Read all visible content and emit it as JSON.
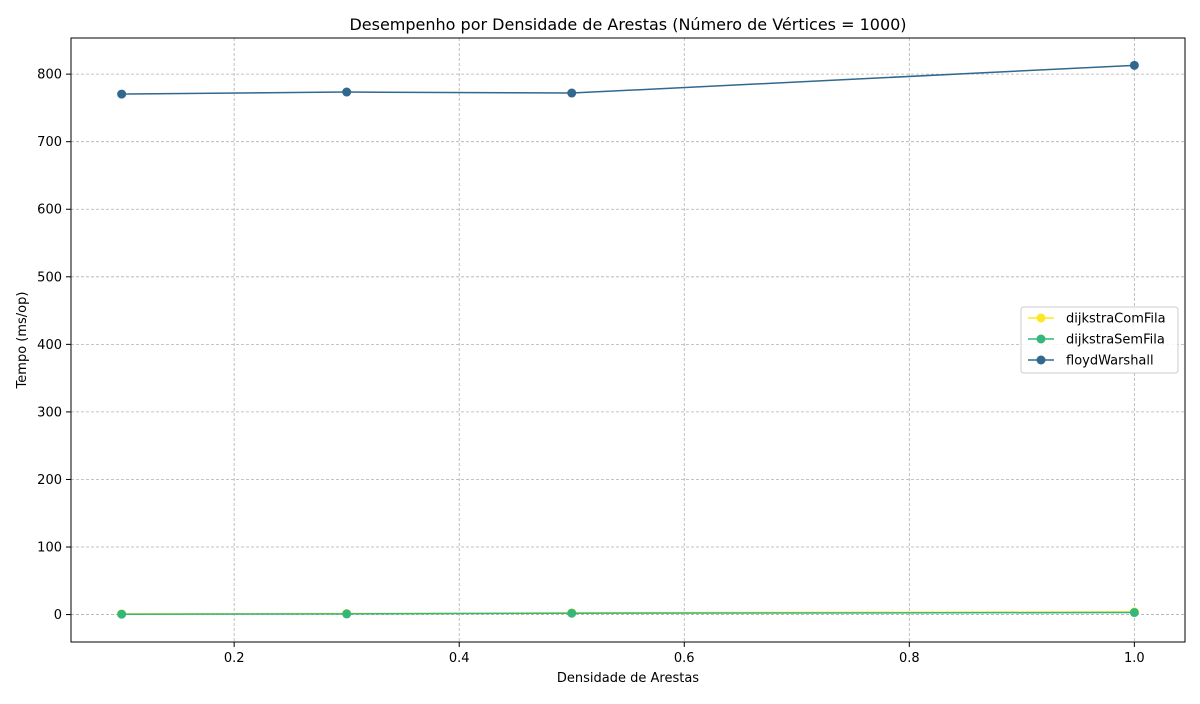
{
  "chart_data": {
    "type": "line",
    "title": "Desempenho por Densidade de Arestas (Número de Vértices = 1000)",
    "xlabel": "Densidade de Arestas",
    "ylabel": "Tempo (ms/op)",
    "xlim": [
      0.055,
      1.045
    ],
    "ylim": [
      -40.6,
      853.5
    ],
    "x_ticks": [
      0.2,
      0.4,
      0.6,
      0.8,
      1.0
    ],
    "x_tick_labels": [
      "0.2",
      "0.4",
      "0.6",
      "0.8",
      "1.0"
    ],
    "y_ticks": [
      0,
      100,
      200,
      300,
      400,
      500,
      600,
      700,
      800
    ],
    "y_tick_labels": [
      "0",
      "100",
      "200",
      "300",
      "400",
      "500",
      "600",
      "700",
      "800"
    ],
    "grid": true,
    "grid_style": "dashed",
    "legend_position": "center-right",
    "x": [
      0.1,
      0.3,
      0.5,
      1.0
    ],
    "series": [
      {
        "name": "dijkstraComFila",
        "color": "#fde725",
        "values": [
          1.0,
          1.5,
          2.5,
          4.0
        ]
      },
      {
        "name": "dijkstraSemFila",
        "color": "#35b779",
        "values": [
          0.5,
          1.0,
          2.0,
          3.0
        ]
      },
      {
        "name": "floydWarshall",
        "color": "#31688e",
        "values": [
          770.5,
          773.5,
          772.0,
          813.0
        ]
      }
    ]
  }
}
